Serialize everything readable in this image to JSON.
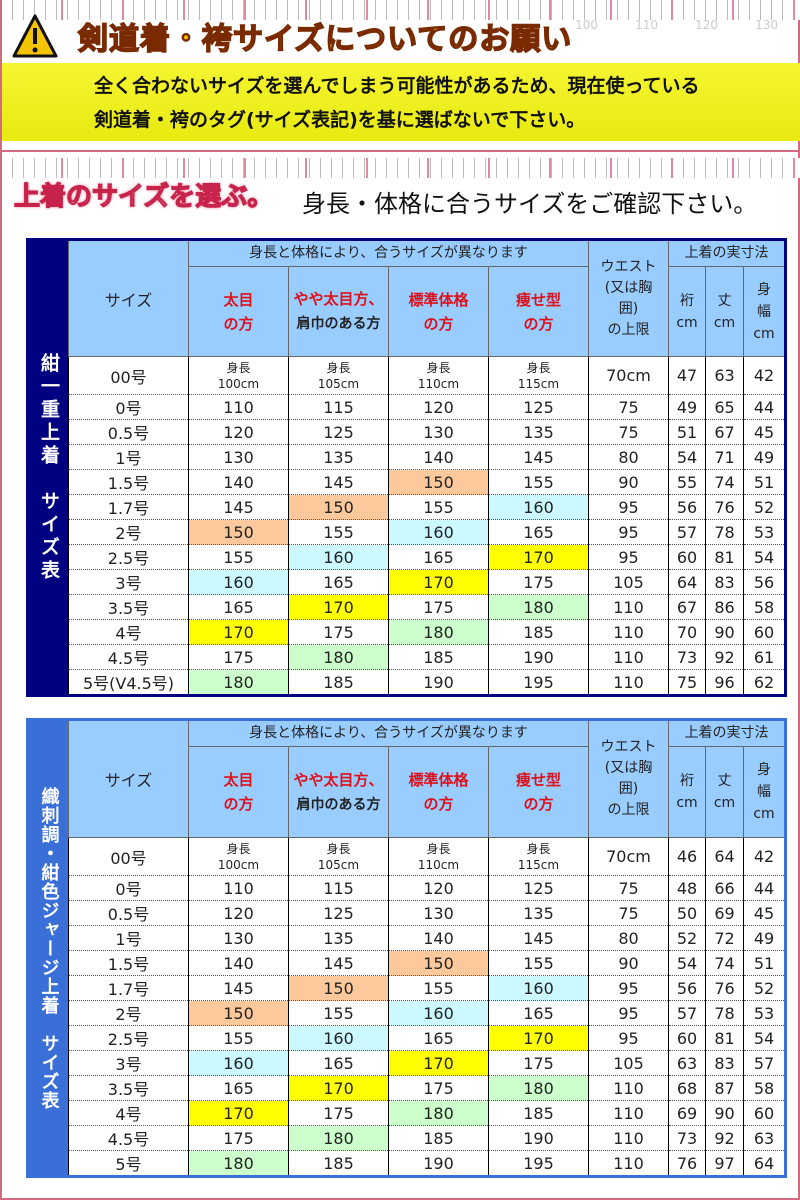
{
  "header": {
    "title": "剣道着・袴サイズについてのお願い",
    "warning_icon": "warning-triangle-icon",
    "notice_lines": [
      "全く合わないサイズを選んでしまう可能性があるため、現在使っている",
      "剣道着・袴のタグ(サイズ表記)を基に選ばないで下さい。"
    ],
    "ruler_numbers": [
      "100",
      "110",
      "120",
      "130"
    ]
  },
  "section": {
    "title": "上着のサイズを選ぶ。",
    "subtitle": "身長・体格に合うサイズをご確認下さい。"
  },
  "colors": {
    "o": "#fbc99c",
    "cy": "#ccf9ff",
    "y": "#ffff00",
    "g": "#ccffcc",
    "band1": "#000080",
    "band2": "#3a6fd8",
    "header_bg": "#99ccff"
  },
  "columns": {
    "size": "サイズ",
    "group": "身長と体格により、合うサイズが異なります",
    "fat": [
      "太目",
      "の方"
    ],
    "semi": [
      "やや太目方、",
      "肩巾のある方"
    ],
    "std": [
      "標準体格",
      "の方"
    ],
    "thin": [
      "痩せ型",
      "の方"
    ],
    "waist": [
      "ウエスト",
      "(又は胸",
      "囲)",
      "の上限"
    ],
    "actual": "上着の実寸法",
    "yuki": [
      "裄",
      "cm"
    ],
    "take": [
      "丈",
      "cm"
    ],
    "mihaba": [
      "身",
      "幅",
      "cm"
    ]
  },
  "height_label": "身長",
  "tables": [
    {
      "band": "紺一重上着　サイズ表",
      "rows": [
        [
          "00号",
          "100cm",
          "105cm",
          "110cm",
          "115cm",
          "70cm",
          "47",
          "63",
          "42"
        ],
        [
          "0号",
          "110",
          "115",
          "120",
          "125",
          "75",
          "49",
          "65",
          "44"
        ],
        [
          "0.5号",
          "120",
          "125",
          "130",
          "135",
          "75",
          "51",
          "67",
          "45"
        ],
        [
          "1号",
          "130",
          "135",
          "140",
          "145",
          "80",
          "54",
          "71",
          "49"
        ],
        [
          "1.5号",
          "140",
          "145",
          "150",
          "155",
          "90",
          "55",
          "74",
          "51"
        ],
        [
          "1.7号",
          "145",
          "150",
          "155",
          "160",
          "95",
          "56",
          "76",
          "52"
        ],
        [
          "2号",
          "150",
          "155",
          "160",
          "165",
          "95",
          "57",
          "78",
          "53"
        ],
        [
          "2.5号",
          "155",
          "160",
          "165",
          "170",
          "95",
          "60",
          "81",
          "54"
        ],
        [
          "3号",
          "160",
          "165",
          "170",
          "175",
          "105",
          "64",
          "83",
          "56"
        ],
        [
          "3.5号",
          "165",
          "170",
          "175",
          "180",
          "110",
          "67",
          "86",
          "58"
        ],
        [
          "4号",
          "170",
          "175",
          "180",
          "185",
          "110",
          "70",
          "90",
          "60"
        ],
        [
          "4.5号",
          "175",
          "180",
          "185",
          "190",
          "110",
          "73",
          "92",
          "61"
        ],
        [
          "5号(V4.5号)",
          "180",
          "185",
          "190",
          "195",
          "110",
          "75",
          "96",
          "62"
        ]
      ]
    },
    {
      "band": "織刺調・紺色ジャージ上着　サイズ表",
      "rows": [
        [
          "00号",
          "100cm",
          "105cm",
          "110cm",
          "115cm",
          "70cm",
          "46",
          "64",
          "42"
        ],
        [
          "0号",
          "110",
          "115",
          "120",
          "125",
          "75",
          "48",
          "66",
          "44"
        ],
        [
          "0.5号",
          "120",
          "125",
          "130",
          "135",
          "75",
          "50",
          "69",
          "45"
        ],
        [
          "1号",
          "130",
          "135",
          "140",
          "145",
          "80",
          "52",
          "72",
          "49"
        ],
        [
          "1.5号",
          "140",
          "145",
          "150",
          "155",
          "90",
          "54",
          "74",
          "51"
        ],
        [
          "1.7号",
          "145",
          "150",
          "155",
          "160",
          "95",
          "56",
          "76",
          "52"
        ],
        [
          "2号",
          "150",
          "155",
          "160",
          "165",
          "95",
          "57",
          "78",
          "53"
        ],
        [
          "2.5号",
          "155",
          "160",
          "165",
          "170",
          "95",
          "60",
          "81",
          "54"
        ],
        [
          "3号",
          "160",
          "165",
          "170",
          "175",
          "105",
          "63",
          "83",
          "57"
        ],
        [
          "3.5号",
          "165",
          "170",
          "175",
          "180",
          "110",
          "68",
          "87",
          "58"
        ],
        [
          "4号",
          "170",
          "175",
          "180",
          "185",
          "110",
          "69",
          "90",
          "60"
        ],
        [
          "4.5号",
          "175",
          "180",
          "185",
          "190",
          "110",
          "73",
          "92",
          "63"
        ],
        [
          "5号",
          "180",
          "185",
          "190",
          "195",
          "110",
          "76",
          "97",
          "64"
        ]
      ]
    }
  ],
  "highlights": [
    [
      "",
      "",
      "",
      "",
      ""
    ],
    [
      "",
      "",
      "",
      "",
      ""
    ],
    [
      "",
      "",
      "",
      "",
      ""
    ],
    [
      "",
      "",
      "",
      "",
      ""
    ],
    [
      "",
      "",
      "",
      "o",
      ""
    ],
    [
      "",
      "",
      "o",
      "",
      "cy"
    ],
    [
      "",
      "o",
      "",
      "cy",
      ""
    ],
    [
      "",
      "",
      "cy",
      "",
      "y"
    ],
    [
      "",
      "cy",
      "",
      "y",
      ""
    ],
    [
      "",
      "",
      "y",
      "",
      "g"
    ],
    [
      "",
      "y",
      "",
      "g",
      ""
    ],
    [
      "",
      "",
      "g",
      "",
      ""
    ],
    [
      "",
      "g",
      "",
      "",
      ""
    ]
  ]
}
